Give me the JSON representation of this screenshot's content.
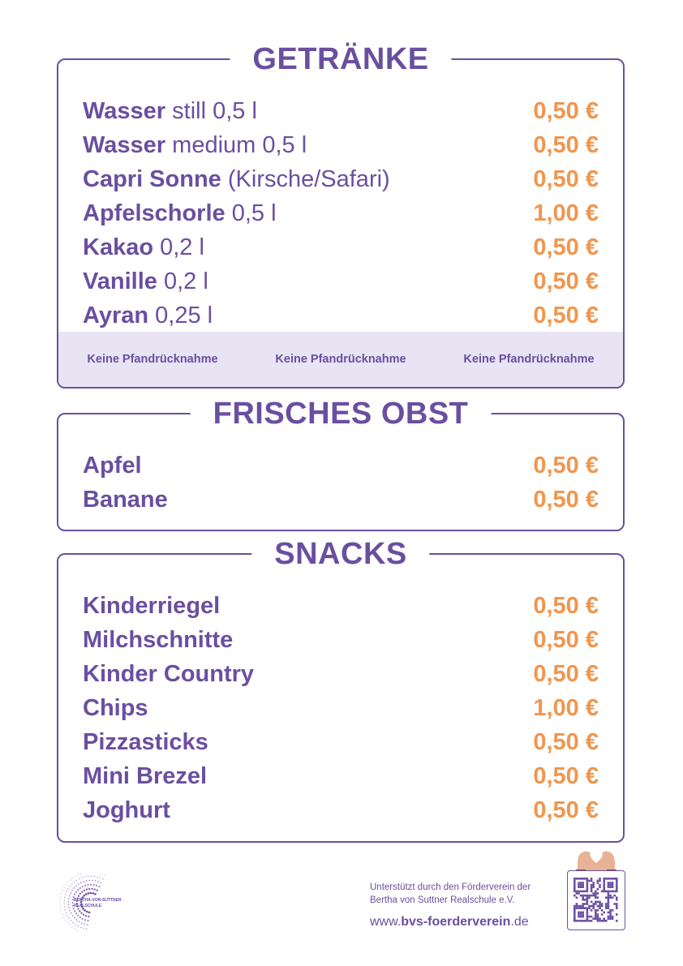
{
  "colors": {
    "primary": "#6a4fa0",
    "price": "#f0964f",
    "notice_bg": "#e8e4f3"
  },
  "getraenke": {
    "title": "GETRÄNKE",
    "items": [
      {
        "name": "Wasser",
        "detail": " still 0,5 l",
        "price": "0,50 €"
      },
      {
        "name": "Wasser",
        "detail": " medium 0,5 l",
        "price": "0,50 €"
      },
      {
        "name": "Capri Sonne",
        "detail": " (Kirsche/Safari)",
        "price": "0,50 €"
      },
      {
        "name": "Apfelschorle",
        "detail": " 0,5 l",
        "price": "1,00 €"
      },
      {
        "name": "Kakao",
        "detail": " 0,2 l",
        "price": "0,50 €"
      },
      {
        "name": "Vanille",
        "detail": " 0,2 l",
        "price": "0,50 €"
      },
      {
        "name": "Ayran",
        "detail": " 0,25 l",
        "price": "0,50 €"
      }
    ],
    "notices": [
      "Keine Pfandrücknahme",
      "Keine Pfandrücknahme",
      "Keine Pfandrücknahme"
    ]
  },
  "obst": {
    "title": "FRISCHES OBST",
    "items": [
      {
        "name": "Apfel",
        "price": "0,50 €"
      },
      {
        "name": "Banane",
        "price": "0,50 €"
      }
    ]
  },
  "snacks": {
    "title": "SNACKS",
    "items": [
      {
        "name": "Kinderriegel",
        "price": "0,50 €"
      },
      {
        "name": "Milchschnitte",
        "price": "0,50 €"
      },
      {
        "name": "Kinder Country",
        "price": "0,50 €"
      },
      {
        "name": "Chips",
        "price": "1,00 €"
      },
      {
        "name": "Pizzasticks",
        "price": "0,50 €"
      },
      {
        "name": "Mini Brezel",
        "price": "0,50 €"
      },
      {
        "name": "Joghurt",
        "price": "0,50 €"
      }
    ]
  },
  "footer": {
    "logo_icon": "school-logo-dots-icon",
    "logo_line1": "BERTHA-VON-SUTTNER",
    "logo_line2": "REALSCHULE",
    "support_line1": "Unterstützt durch den Förderverein der",
    "support_line2": "Bertha von Suttner Realschule e.V.",
    "website_prefix": "www.",
    "website_bold": "bvs-foerderverein",
    "website_suffix": ".de",
    "qr_icon": "qr-code-icon",
    "hands_icon": "heart-hands-icon"
  }
}
